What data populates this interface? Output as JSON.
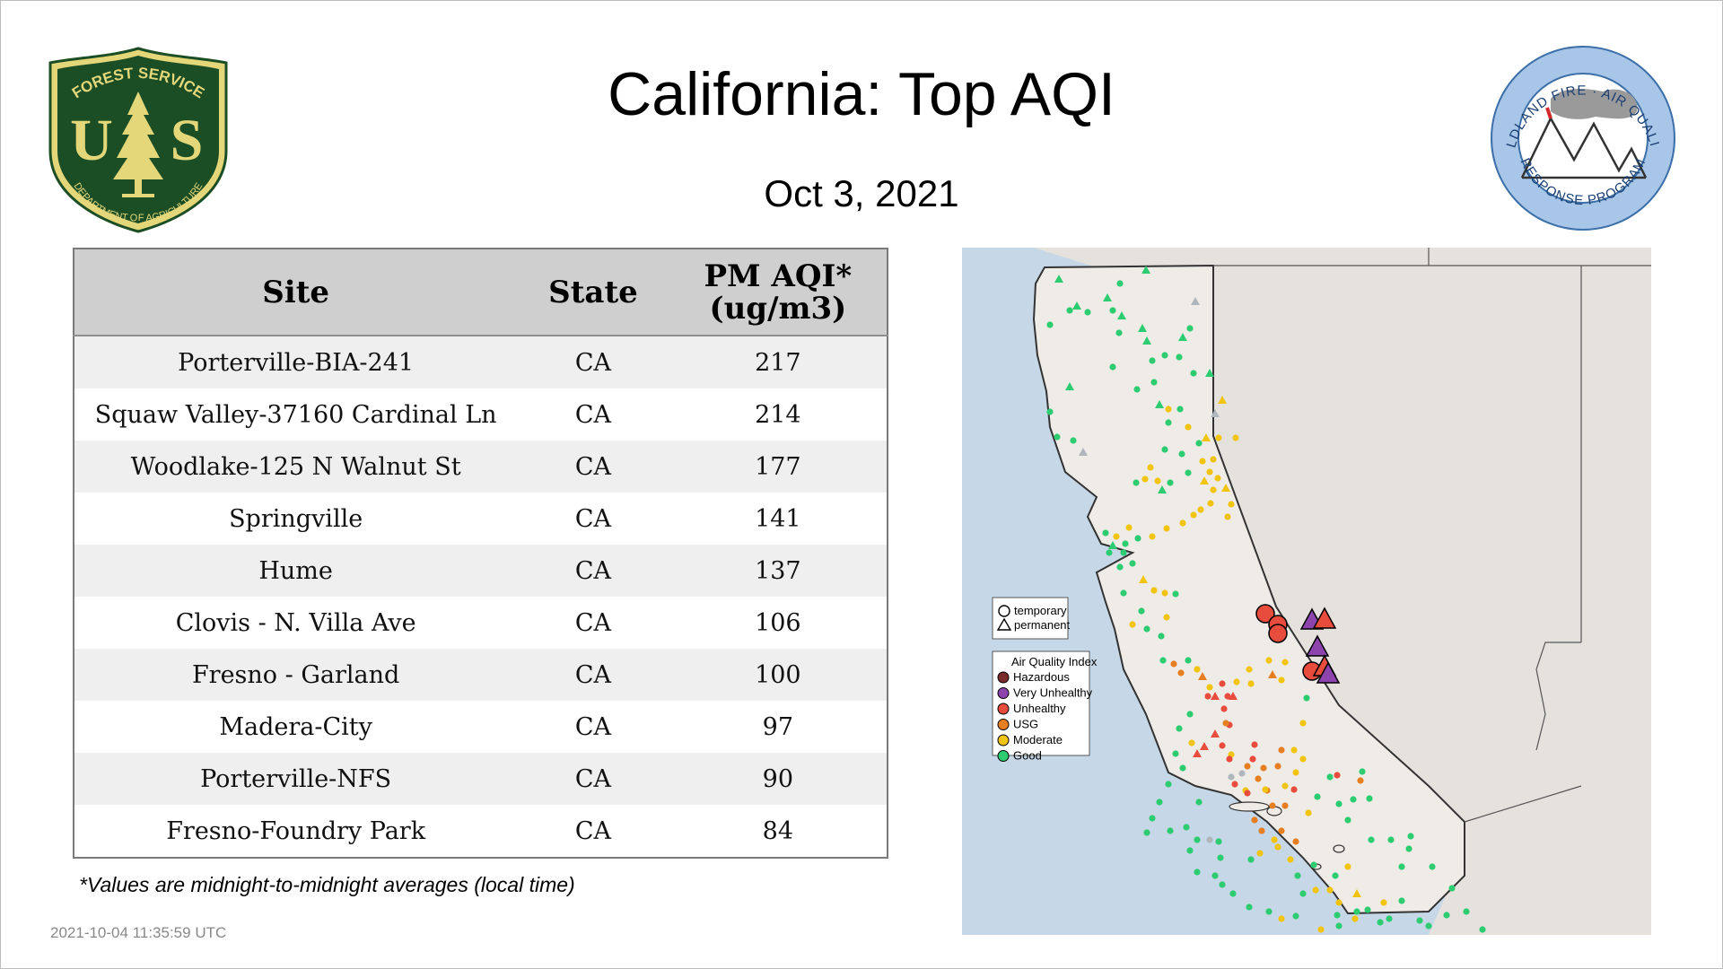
{
  "header": {
    "title": "California: Top AQI",
    "date": "Oct  3, 2021"
  },
  "logos": {
    "forest_service": {
      "top_text": "FOREST SERVICE",
      "letters_left": "U",
      "letters_right": "S",
      "bottom_text": "DEPARTMENT OF AGRICULTURE"
    },
    "wildland_fire": {
      "top_text": "WILDLAND FIRE · AIR QUALITY",
      "bottom_text": "RESPONSE PROGRAM"
    }
  },
  "table": {
    "headers": {
      "site": "Site",
      "state": "State",
      "aqi_line1": "PM AQI*",
      "aqi_line2": "(ug/m3)"
    },
    "rows": [
      {
        "site": "Porterville-BIA-241",
        "state": "CA",
        "aqi": "217"
      },
      {
        "site": "Squaw Valley-37160 Cardinal Ln",
        "state": "CA",
        "aqi": "214"
      },
      {
        "site": "Woodlake-125 N Walnut St",
        "state": "CA",
        "aqi": "177"
      },
      {
        "site": "Springville",
        "state": "CA",
        "aqi": "141"
      },
      {
        "site": "Hume",
        "state": "CA",
        "aqi": "137"
      },
      {
        "site": "Clovis - N. Villa Ave",
        "state": "CA",
        "aqi": "106"
      },
      {
        "site": "Fresno - Garland",
        "state": "CA",
        "aqi": "100"
      },
      {
        "site": "Madera-City",
        "state": "CA",
        "aqi": "97"
      },
      {
        "site": "Porterville-NFS",
        "state": "CA",
        "aqi": "90"
      },
      {
        "site": "Fresno-Foundry Park",
        "state": "CA",
        "aqi": "84"
      }
    ]
  },
  "footnote": "*Values are midnight-to-midnight averages (local time)",
  "timestamp": "2021-10-04 11:35:59 UTC",
  "map": {
    "monitor_legend": {
      "temporary": "temporary",
      "permanent": "permanent"
    },
    "aqi_legend": {
      "title": "Air Quality Index",
      "items": [
        {
          "label": "Hazardous",
          "color": "#7b2b2b"
        },
        {
          "label": "Very Unhealthy",
          "color": "#8e44ad"
        },
        {
          "label": "Unhealthy",
          "color": "#e74c3c"
        },
        {
          "label": "USG",
          "color": "#e67e22"
        },
        {
          "label": "Moderate",
          "color": "#f1c40f"
        },
        {
          "label": "Good",
          "color": "#2ecc71"
        }
      ]
    }
  },
  "colors": {
    "water": "#c6d7e7",
    "land": "#e9e6e2",
    "forest_green": "#1b4e24",
    "forest_yellow": "#e3d77a",
    "badge_blue": "#a8c6e8"
  }
}
